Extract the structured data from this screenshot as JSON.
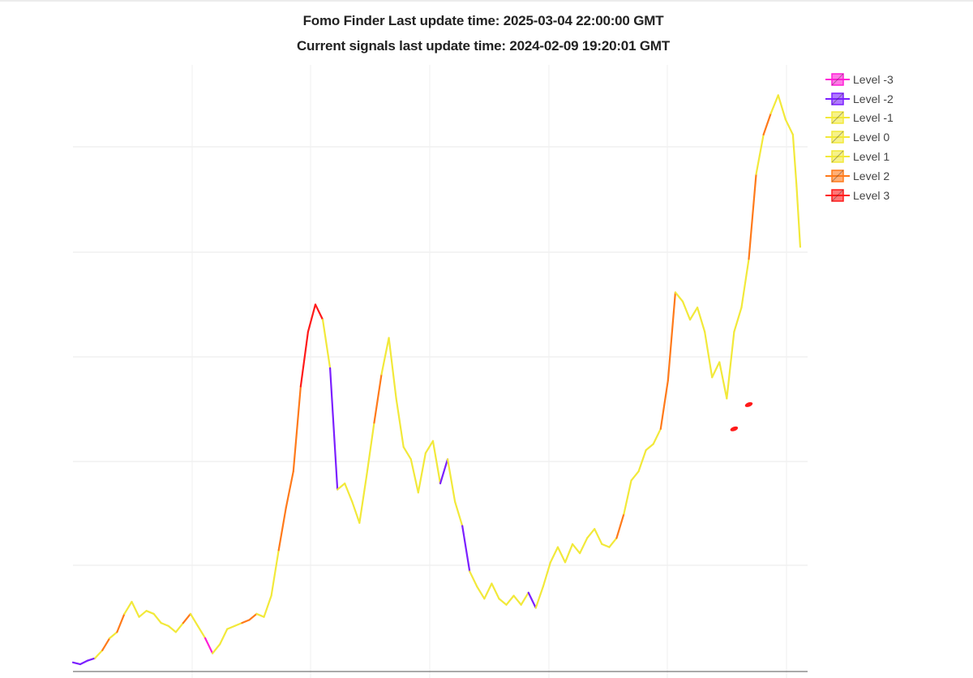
{
  "title": {
    "line1": "Fomo Finder Last update time: 2025-03-04 22:00:00 GMT",
    "line2": "Current signals last update time: 2024-02-09 19:20:01 GMT"
  },
  "legend": [
    {
      "label": "Level -3",
      "color": "#ff1fd6"
    },
    {
      "label": "Level -2",
      "color": "#7b1fff"
    },
    {
      "label": "Level -1",
      "color": "#f2e93a"
    },
    {
      "label": "Level 0",
      "color": "#f2e93a"
    },
    {
      "label": "Level 1",
      "color": "#f2e93a"
    },
    {
      "label": "Level 2",
      "color": "#ff7a1a"
    },
    {
      "label": "Level 3",
      "color": "#ff1a1a"
    }
  ],
  "chart_data": {
    "type": "line",
    "series_note": "single price line colored by signal level",
    "x_range": [
      0,
      1000
    ],
    "y_range": [
      0,
      100
    ],
    "grid": true,
    "legend_position": "top-right",
    "points": [
      [
        0,
        1.5,
        -2
      ],
      [
        10,
        1.2,
        -2
      ],
      [
        20,
        1.8,
        -2
      ],
      [
        30,
        2.2,
        -2
      ],
      [
        40,
        3.5,
        -1
      ],
      [
        50,
        5.5,
        2
      ],
      [
        60,
        6.5,
        1
      ],
      [
        70,
        9.5,
        2
      ],
      [
        80,
        11.5,
        1
      ],
      [
        90,
        9,
        1
      ],
      [
        100,
        10,
        1
      ],
      [
        110,
        9.5,
        1
      ],
      [
        120,
        8,
        1
      ],
      [
        130,
        7.5,
        1
      ],
      [
        140,
        6.5,
        1
      ],
      [
        150,
        8,
        1
      ],
      [
        160,
        9.5,
        2
      ],
      [
        170,
        7.5,
        1
      ],
      [
        180,
        5.5,
        1
      ],
      [
        190,
        3,
        -3
      ],
      [
        200,
        4.5,
        1
      ],
      [
        210,
        7,
        1
      ],
      [
        220,
        7.5,
        1
      ],
      [
        230,
        8,
        1
      ],
      [
        240,
        8.5,
        2
      ],
      [
        250,
        9.5,
        2
      ],
      [
        260,
        9,
        1
      ],
      [
        270,
        12.5,
        1
      ],
      [
        280,
        20,
        1
      ],
      [
        290,
        27,
        2
      ],
      [
        300,
        33,
        2
      ],
      [
        310,
        47,
        2
      ],
      [
        320,
        56,
        3
      ],
      [
        330,
        60.5,
        3
      ],
      [
        340,
        58,
        3
      ],
      [
        350,
        50,
        1
      ],
      [
        360,
        30,
        -2
      ],
      [
        370,
        31,
        1
      ],
      [
        380,
        28,
        1
      ],
      [
        390,
        24.5,
        1
      ],
      [
        400,
        32.5,
        1
      ],
      [
        410,
        41,
        1
      ],
      [
        420,
        49,
        2
      ],
      [
        430,
        55,
        1
      ],
      [
        440,
        45,
        1
      ],
      [
        450,
        37,
        1
      ],
      [
        460,
        35,
        1
      ],
      [
        470,
        29.5,
        1
      ],
      [
        480,
        36,
        1
      ],
      [
        490,
        38,
        1
      ],
      [
        500,
        31,
        1
      ],
      [
        510,
        35,
        -2
      ],
      [
        520,
        28,
        1
      ],
      [
        530,
        24,
        1
      ],
      [
        540,
        16.5,
        -2
      ],
      [
        550,
        14,
        1
      ],
      [
        560,
        12,
        1
      ],
      [
        570,
        14.5,
        1
      ],
      [
        580,
        12,
        1
      ],
      [
        590,
        11,
        1
      ],
      [
        600,
        12.5,
        1
      ],
      [
        610,
        11,
        1
      ],
      [
        620,
        13,
        1
      ],
      [
        630,
        10.5,
        -2
      ],
      [
        640,
        14,
        1
      ],
      [
        650,
        18,
        1
      ],
      [
        660,
        20.5,
        1
      ],
      [
        670,
        18,
        1
      ],
      [
        680,
        21,
        1
      ],
      [
        690,
        19.5,
        1
      ],
      [
        700,
        22,
        1
      ],
      [
        710,
        23.5,
        1
      ],
      [
        720,
        21,
        1
      ],
      [
        730,
        20.5,
        1
      ],
      [
        740,
        22,
        1
      ],
      [
        750,
        26,
        2
      ],
      [
        760,
        31.5,
        1
      ],
      [
        770,
        33,
        1
      ],
      [
        780,
        36.5,
        1
      ],
      [
        790,
        37.5,
        1
      ],
      [
        800,
        40,
        1
      ],
      [
        810,
        48,
        2
      ],
      [
        820,
        62.5,
        2
      ],
      [
        830,
        61,
        1
      ],
      [
        840,
        58,
        1
      ],
      [
        850,
        60,
        1
      ],
      [
        860,
        56,
        1
      ],
      [
        870,
        48.5,
        1
      ],
      [
        880,
        51,
        1
      ],
      [
        890,
        45,
        1
      ],
      [
        900,
        56,
        1
      ],
      [
        910,
        60,
        1
      ],
      [
        920,
        68,
        1
      ],
      [
        930,
        82,
        2
      ],
      [
        940,
        88.5,
        1
      ],
      [
        950,
        92,
        2
      ],
      [
        960,
        95,
        1
      ],
      [
        970,
        91,
        1
      ],
      [
        980,
        88.5,
        1
      ],
      [
        985,
        80,
        1
      ],
      [
        990,
        70,
        1
      ]
    ],
    "highlights": [
      {
        "x": 900,
        "y": 40,
        "level": 3
      },
      {
        "x": 920,
        "y": 44,
        "level": 3
      }
    ]
  }
}
